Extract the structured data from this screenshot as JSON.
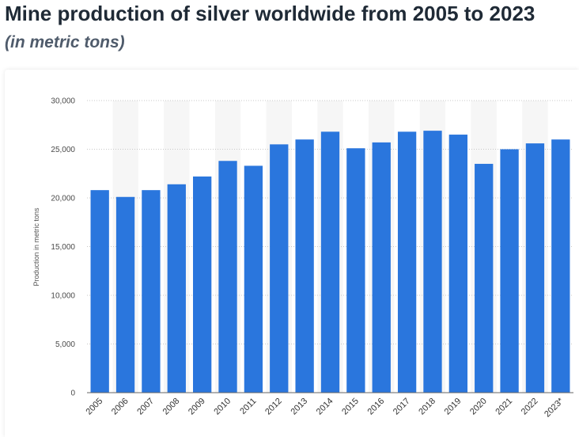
{
  "title": "Mine production of silver worldwide from 2005 to 2023",
  "subtitle": "(in metric tons)",
  "colors": {
    "bar": "#2a76dd",
    "band": "#f6f6f6",
    "grid": "#c8c8c8"
  },
  "chart_data": {
    "type": "bar",
    "title": "Mine production of silver worldwide from 2005 to 2023",
    "subtitle": "(in metric tons)",
    "xlabel": "",
    "ylabel": "Production in metric tons",
    "ylim": [
      0,
      30000
    ],
    "yticks": [
      0,
      5000,
      10000,
      15000,
      20000,
      25000,
      30000
    ],
    "ytick_labels": [
      "0",
      "5,000",
      "10,000",
      "15,000",
      "20,000",
      "25,000",
      "30,000"
    ],
    "grid": true,
    "categories": [
      "2005",
      "2006",
      "2007",
      "2008",
      "2009",
      "2010",
      "2011",
      "2012",
      "2013",
      "2014",
      "2015",
      "2016",
      "2017",
      "2018",
      "2019",
      "2020",
      "2021",
      "2022",
      "2023*"
    ],
    "values": [
      20800,
      20100,
      20800,
      21400,
      22200,
      23800,
      23300,
      25500,
      26000,
      26800,
      25100,
      25700,
      26800,
      26900,
      26500,
      23500,
      25000,
      25600,
      26000
    ]
  }
}
